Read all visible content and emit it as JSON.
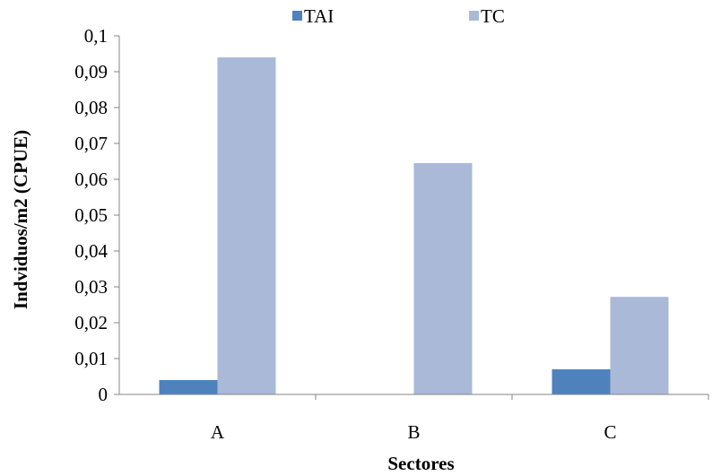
{
  "chart_data": {
    "type": "bar",
    "categories": [
      "A",
      "B",
      "C"
    ],
    "series": [
      {
        "name": "TAI",
        "values": [
          0.004,
          0.0,
          0.007
        ],
        "color": "#4f81bd"
      },
      {
        "name": "TC",
        "values": [
          0.094,
          0.0645,
          0.0272
        ],
        "color": "#aab9d8"
      }
    ],
    "title": "",
    "xlabel": "Sectores",
    "ylabel": "Indviduos/m2 (CPUE)",
    "ylim": [
      0,
      0.1
    ],
    "yticks": [
      "0",
      "0,01",
      "0,02",
      "0,03",
      "0,04",
      "0,05",
      "0,06",
      "0,07",
      "0,08",
      "0,09",
      "0,1"
    ],
    "grid": false,
    "legend_position": "top"
  }
}
